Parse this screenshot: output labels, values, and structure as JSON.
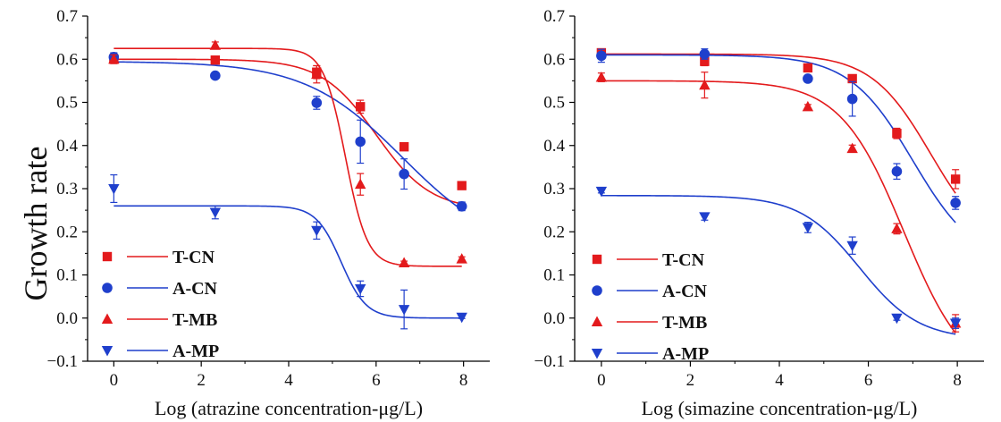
{
  "ylabel": "Growth rate",
  "colors": {
    "red": "#e31a1c",
    "blue": "#1f3fcc"
  },
  "chart_data": [
    {
      "type": "scatter",
      "xlabel": "Log (atrazine concentration-μg/L)",
      "xlim": [
        -0.6,
        8.6
      ],
      "ylim": [
        -0.1,
        0.7
      ],
      "xticks": [
        "0",
        "2",
        "4",
        "6",
        "8"
      ],
      "yticks": [
        "−0.1",
        "0.0",
        "0.1",
        "0.2",
        "0.3",
        "0.4",
        "0.5",
        "0.6",
        "0.7"
      ],
      "legend": "bottom-left",
      "series": [
        {
          "name": "T-CN",
          "marker": "square",
          "color": "#e31a1c",
          "x": [
            0,
            2.32,
            4.64,
            5.64,
            6.64,
            7.96
          ],
          "y": [
            0.6,
            0.598,
            0.57,
            0.49,
            0.397,
            0.307
          ],
          "err": [
            0.01,
            0.005,
            0.015,
            0.015,
            0.005,
            0.005
          ],
          "fit": {
            "top": 0.6,
            "bottom": 0.25,
            "x0": 6.0,
            "p": 1.6
          }
        },
        {
          "name": "A-CN",
          "marker": "circle",
          "color": "#1f3fcc",
          "x": [
            0,
            2.32,
            4.64,
            5.64,
            6.64,
            7.96
          ],
          "y": [
            0.605,
            0.562,
            0.499,
            0.409,
            0.334,
            0.259
          ],
          "err": [
            0.01,
            0.005,
            0.015,
            0.05,
            0.035,
            0.01
          ],
          "fit": {
            "top": 0.595,
            "bottom": 0.15,
            "x0": 6.6,
            "p": 0.9
          }
        },
        {
          "name": "T-MB",
          "marker": "triangle-up",
          "color": "#e31a1c",
          "x": [
            0,
            2.32,
            4.64,
            5.64,
            6.64,
            7.96
          ],
          "y": [
            0.6,
            0.632,
            0.565,
            0.31,
            0.128,
            0.137
          ],
          "err": [
            0.01,
            0.008,
            0.02,
            0.025,
            0.004,
            0.005
          ],
          "fit": {
            "top": 0.625,
            "bottom": 0.12,
            "x0": 5.3,
            "p": 4.0
          }
        },
        {
          "name": "A-MP",
          "marker": "triangle-down",
          "color": "#1f3fcc",
          "x": [
            0,
            2.32,
            4.64,
            5.64,
            6.64,
            7.96
          ],
          "y": [
            0.3,
            0.245,
            0.203,
            0.068,
            0.02,
            0.002
          ],
          "err": [
            0.032,
            0.015,
            0.02,
            0.018,
            0.045,
            0.003
          ],
          "fit": {
            "top": 0.26,
            "bottom": 0.0,
            "x0": 5.2,
            "p": 3.5
          }
        }
      ]
    },
    {
      "type": "scatter",
      "xlabel": "Log (simazine concentration-μg/L)",
      "xlim": [
        -0.6,
        8.6
      ],
      "ylim": [
        -0.1,
        0.7
      ],
      "xticks": [
        "0",
        "2",
        "4",
        "6",
        "8"
      ],
      "yticks": [
        "−0.1",
        "0.0",
        "0.1",
        "0.2",
        "0.3",
        "0.4",
        "0.5",
        "0.6",
        "0.7"
      ],
      "legend": "bottom-left",
      "series": [
        {
          "name": "T-CN",
          "marker": "square",
          "color": "#e31a1c",
          "x": [
            0,
            2.32,
            4.64,
            5.64,
            6.64,
            7.96
          ],
          "y": [
            0.615,
            0.595,
            0.58,
            0.555,
            0.428,
            0.322
          ],
          "err": [
            0.005,
            0.01,
            0.005,
            0.005,
            0.012,
            0.022
          ],
          "fit": {
            "top": 0.612,
            "bottom": 0.15,
            "x0": 7.4,
            "p": 1.5
          }
        },
        {
          "name": "A-CN",
          "marker": "circle",
          "color": "#1f3fcc",
          "x": [
            0,
            2.32,
            4.64,
            5.64,
            6.64,
            7.96
          ],
          "y": [
            0.608,
            0.612,
            0.555,
            0.508,
            0.34,
            0.267
          ],
          "err": [
            0.015,
            0.012,
            0.005,
            0.04,
            0.018,
            0.015
          ],
          "fit": {
            "top": 0.61,
            "bottom": 0.12,
            "x0": 7.0,
            "p": 1.4
          }
        },
        {
          "name": "T-MB",
          "marker": "triangle-up",
          "color": "#e31a1c",
          "x": [
            0,
            2.32,
            4.64,
            5.64,
            6.64,
            7.96
          ],
          "y": [
            0.558,
            0.54,
            0.49,
            0.393,
            0.207,
            -0.012
          ],
          "err": [
            0.01,
            0.03,
            0.005,
            0.008,
            0.012,
            0.02
          ],
          "fit": {
            "top": 0.55,
            "bottom": -0.15,
            "x0": 6.8,
            "p": 1.4
          }
        },
        {
          "name": "A-MP",
          "marker": "triangle-down",
          "color": "#1f3fcc",
          "x": [
            0,
            2.32,
            4.64,
            5.64,
            6.64,
            7.96
          ],
          "y": [
            0.294,
            0.235,
            0.21,
            0.168,
            0.0,
            -0.012
          ],
          "err": [
            0.004,
            0.008,
            0.012,
            0.02,
            0.005,
            0.012
          ],
          "fit": {
            "top": 0.284,
            "bottom": -0.05,
            "x0": 5.8,
            "p": 1.5
          }
        }
      ]
    }
  ]
}
